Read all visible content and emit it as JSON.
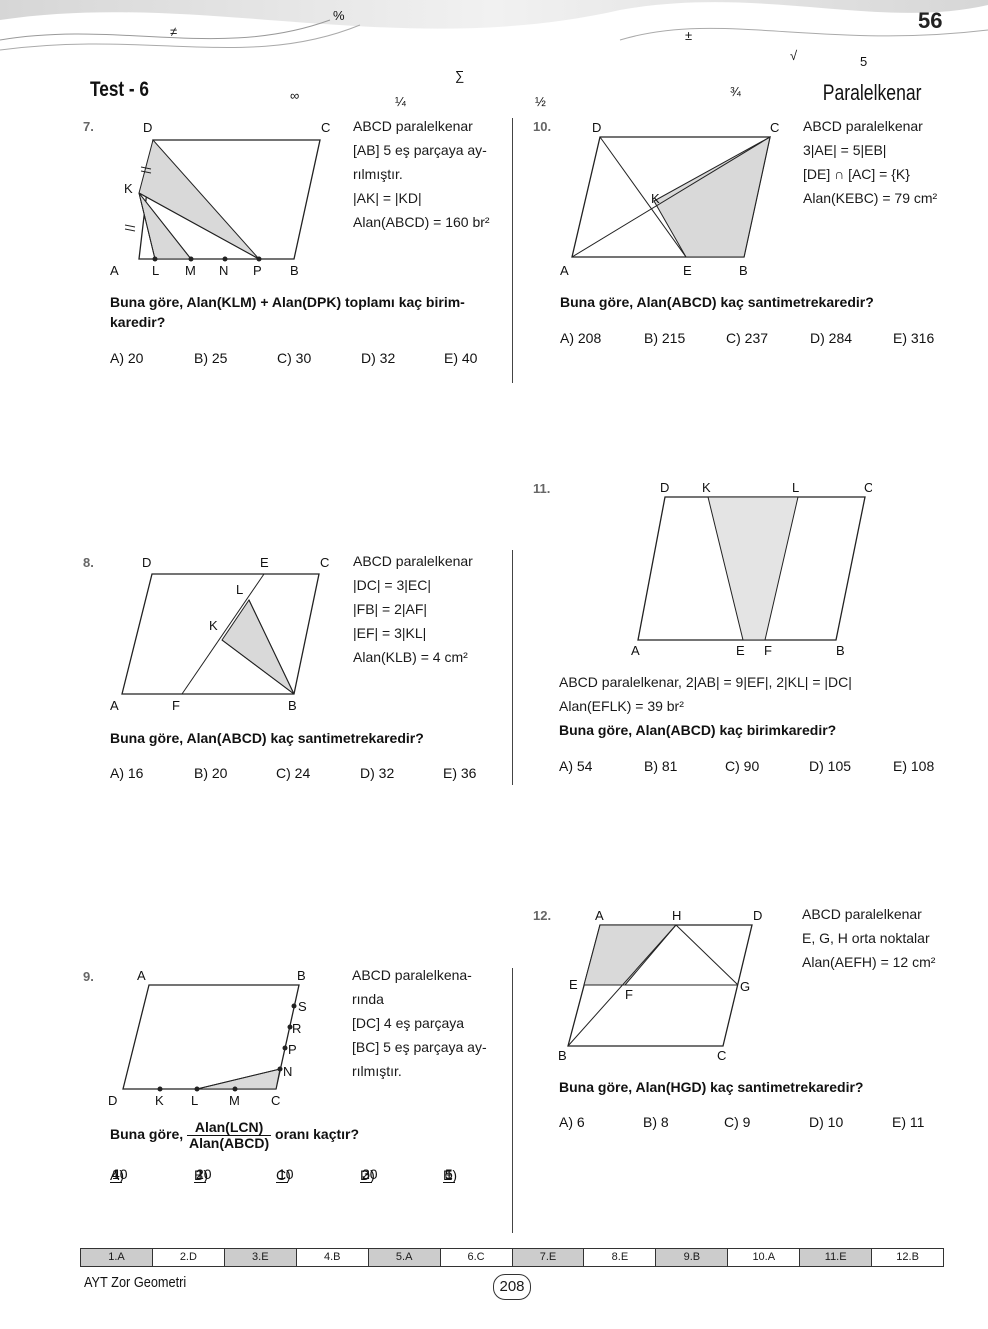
{
  "header": {
    "page_number": "56",
    "test_title": "Test - 6",
    "section_title": "Paralelkenar",
    "decor_symbols": [
      "≠",
      "∑",
      "±",
      "∞",
      "¼",
      "½",
      "¾",
      "√",
      "5",
      "%"
    ]
  },
  "questions": [
    {
      "number": "7.",
      "labels": [
        "D",
        "C",
        "K",
        "A",
        "L",
        "M",
        "N",
        "P",
        "B"
      ],
      "given": [
        "ABCD paralelkenar",
        "[AB] 5 eş parçaya ay-",
        "rılmıştır.",
        "|AK| = |KD|",
        "Alan(ABCD) = 160 br²"
      ],
      "question": "Buna göre, Alan(KLM) + Alan(DPK) toplamı kaç birim-karedir?",
      "choices": [
        "A) 20",
        "B) 25",
        "C) 30",
        "D) 32",
        "E) 40"
      ]
    },
    {
      "number": "8.",
      "labels": [
        "D",
        "E",
        "C",
        "L",
        "K",
        "A",
        "F",
        "B"
      ],
      "given": [
        "ABCD paralelkenar",
        "|DC| = 3|EC|",
        "|FB| = 2|AF|",
        "|EF| = 3|KL|",
        "Alan(KLB) = 4 cm²"
      ],
      "question": "Buna göre, Alan(ABCD) kaç santimetrekaredir?",
      "choices": [
        "A) 16",
        "B) 20",
        "C) 24",
        "D) 32",
        "E) 36"
      ]
    },
    {
      "number": "9.",
      "labels": [
        "A",
        "B",
        "S",
        "R",
        "P",
        "N",
        "D",
        "K",
        "L",
        "M",
        "C"
      ],
      "given": [
        "ABCD paralelkena-",
        "rında",
        "[DC] 4 eş parçaya",
        "[BC] 5 eş parçaya ay-",
        "rılmıştır."
      ],
      "question_prefix": "Buna göre,",
      "question_numerator": "Alan(LCN)",
      "question_denominator": "Alan(ABCD)",
      "question_suffix": "oranı kaçtır?",
      "choices": [
        {
          "letter": "A)",
          "num": "1",
          "den": "40"
        },
        {
          "letter": "B)",
          "num": "1",
          "den": "20"
        },
        {
          "letter": "C)",
          "num": "1",
          "den": "10"
        },
        {
          "letter": "D)",
          "num": "3",
          "den": "20"
        },
        {
          "letter": "E)",
          "num": "1",
          "den": "5"
        }
      ]
    },
    {
      "number": "10.",
      "labels": [
        "D",
        "C",
        "K",
        "A",
        "E",
        "B"
      ],
      "given": [
        "ABCD paralelkenar",
        "3|AE| = 5|EB|",
        "[DE] ∩ [AC] = {K}",
        "Alan(KEBC) = 79 cm²"
      ],
      "question": "Buna göre, Alan(ABCD) kaç santimetrekaredir?",
      "choices": [
        "A) 208",
        "B) 215",
        "C) 237",
        "D) 284",
        "E) 316"
      ]
    },
    {
      "number": "11.",
      "labels": [
        "D",
        "K",
        "L",
        "C",
        "A",
        "E",
        "F",
        "B"
      ],
      "given": [
        "ABCD paralelkenar, 2|AB| = 9|EF|, 2|KL| = |DC|",
        "Alan(EFLK) = 39 br²"
      ],
      "question": "Buna göre, Alan(ABCD) kaç birimkaredir?",
      "choices": [
        "A) 54",
        "B) 81",
        "C) 90",
        "D) 105",
        "E) 108"
      ]
    },
    {
      "number": "12.",
      "labels": [
        "A",
        "H",
        "D",
        "E",
        "F",
        "G",
        "B",
        "C"
      ],
      "given": [
        "ABCD paralelkenar",
        "E, G, H orta noktalar",
        "Alan(AEFH) = 12 cm²"
      ],
      "question": "Buna göre, Alan(HGD) kaç santimetrekaredir?",
      "choices": [
        "A) 6",
        "B) 8",
        "C) 9",
        "D) 10",
        "E) 11"
      ]
    }
  ],
  "answer_key": [
    {
      "label": "1.A",
      "shaded": true
    },
    {
      "label": "2.D",
      "shaded": false
    },
    {
      "label": "3.E",
      "shaded": true
    },
    {
      "label": "4.B",
      "shaded": false
    },
    {
      "label": "5.A",
      "shaded": true
    },
    {
      "label": "6.C",
      "shaded": false
    },
    {
      "label": "7.E",
      "shaded": true
    },
    {
      "label": "8.E",
      "shaded": false
    },
    {
      "label": "9.B",
      "shaded": true
    },
    {
      "label": "10.A",
      "shaded": false
    },
    {
      "label": "11.E",
      "shaded": true
    },
    {
      "label": "12.B",
      "shaded": false
    }
  ],
  "footer": {
    "book_title": "AYT Zor Geometri",
    "page_number": "208"
  }
}
